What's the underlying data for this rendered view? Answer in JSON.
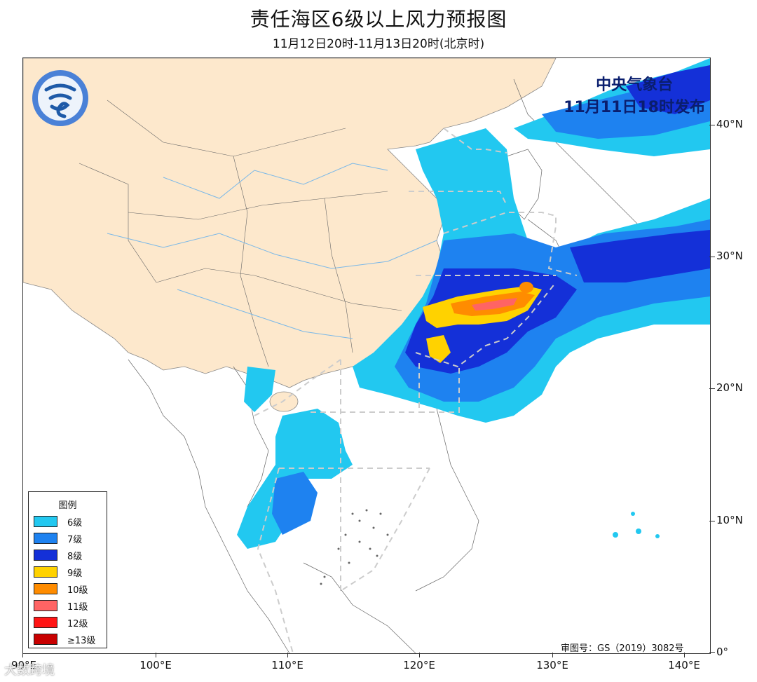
{
  "header": {
    "title": "责任海区6级以上风力预报图",
    "subtitle": "11月12日20时-11月13日20时(北京时)"
  },
  "issuer": {
    "line1": "中央气象台",
    "line2": "11月11日18时发布"
  },
  "axes": {
    "lat_labels": [
      "40°N",
      "30°N",
      "20°N",
      "10°N",
      "0°"
    ],
    "lon_labels": [
      "90°E",
      "100°E",
      "110°E",
      "120°E",
      "130°E",
      "140°E"
    ]
  },
  "legend": {
    "title": "图例",
    "items": [
      {
        "label": "6级",
        "color": "#22c8f0"
      },
      {
        "label": "7级",
        "color": "#1e82f0"
      },
      {
        "label": "8级",
        "color": "#1430d8"
      },
      {
        "label": "9级",
        "color": "#ffd200"
      },
      {
        "label": "10级",
        "color": "#ff8c00"
      },
      {
        "label": "11级",
        "color": "#ff6464"
      },
      {
        "label": "12级",
        "color": "#ff1414"
      },
      {
        "label": "≥13级",
        "color": "#c80000"
      }
    ]
  },
  "credit": "审图号：GS（2019）3082号",
  "watermark": "大数跨境",
  "colors": {
    "land_china": "#fde8cc",
    "land_other": "#ffffff",
    "ocean": "#ffffff",
    "boundary_dash": "#cccccc",
    "issuer_text": "#0a1e6e"
  }
}
